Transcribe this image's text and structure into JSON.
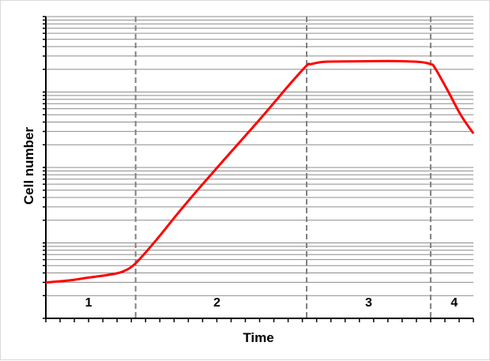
{
  "chart_data": {
    "type": "line",
    "xlabel": "Time",
    "ylabel": "Cell number",
    "y_scale": "log",
    "y_decades": 4,
    "grid": true,
    "line_color": "#ff0000",
    "divider_color": "#808080",
    "phase_boundaries": [
      0.21,
      0.61,
      0.9
    ],
    "phases": [
      {
        "label": "1",
        "x": 0.1
      },
      {
        "label": "2",
        "x": 0.4
      },
      {
        "label": "3",
        "x": 0.755
      },
      {
        "label": "4",
        "x": 0.955
      }
    ],
    "series": [
      {
        "points": [
          [
            0.0,
            0.475
          ],
          [
            0.05,
            0.5
          ],
          [
            0.1,
            0.54
          ],
          [
            0.15,
            0.58
          ],
          [
            0.18,
            0.62
          ],
          [
            0.21,
            0.73
          ],
          [
            0.26,
            1.05
          ],
          [
            0.31,
            1.4
          ],
          [
            0.37,
            1.8
          ],
          [
            0.44,
            2.25
          ],
          [
            0.51,
            2.7
          ],
          [
            0.57,
            3.1
          ],
          [
            0.61,
            3.35
          ],
          [
            0.62,
            3.37
          ],
          [
            0.65,
            3.4
          ],
          [
            0.7,
            3.405
          ],
          [
            0.8,
            3.41
          ],
          [
            0.87,
            3.4
          ],
          [
            0.9,
            3.37
          ],
          [
            0.91,
            3.32
          ],
          [
            0.94,
            3.02
          ],
          [
            0.97,
            2.7
          ],
          [
            1.0,
            2.45
          ]
        ]
      }
    ]
  }
}
